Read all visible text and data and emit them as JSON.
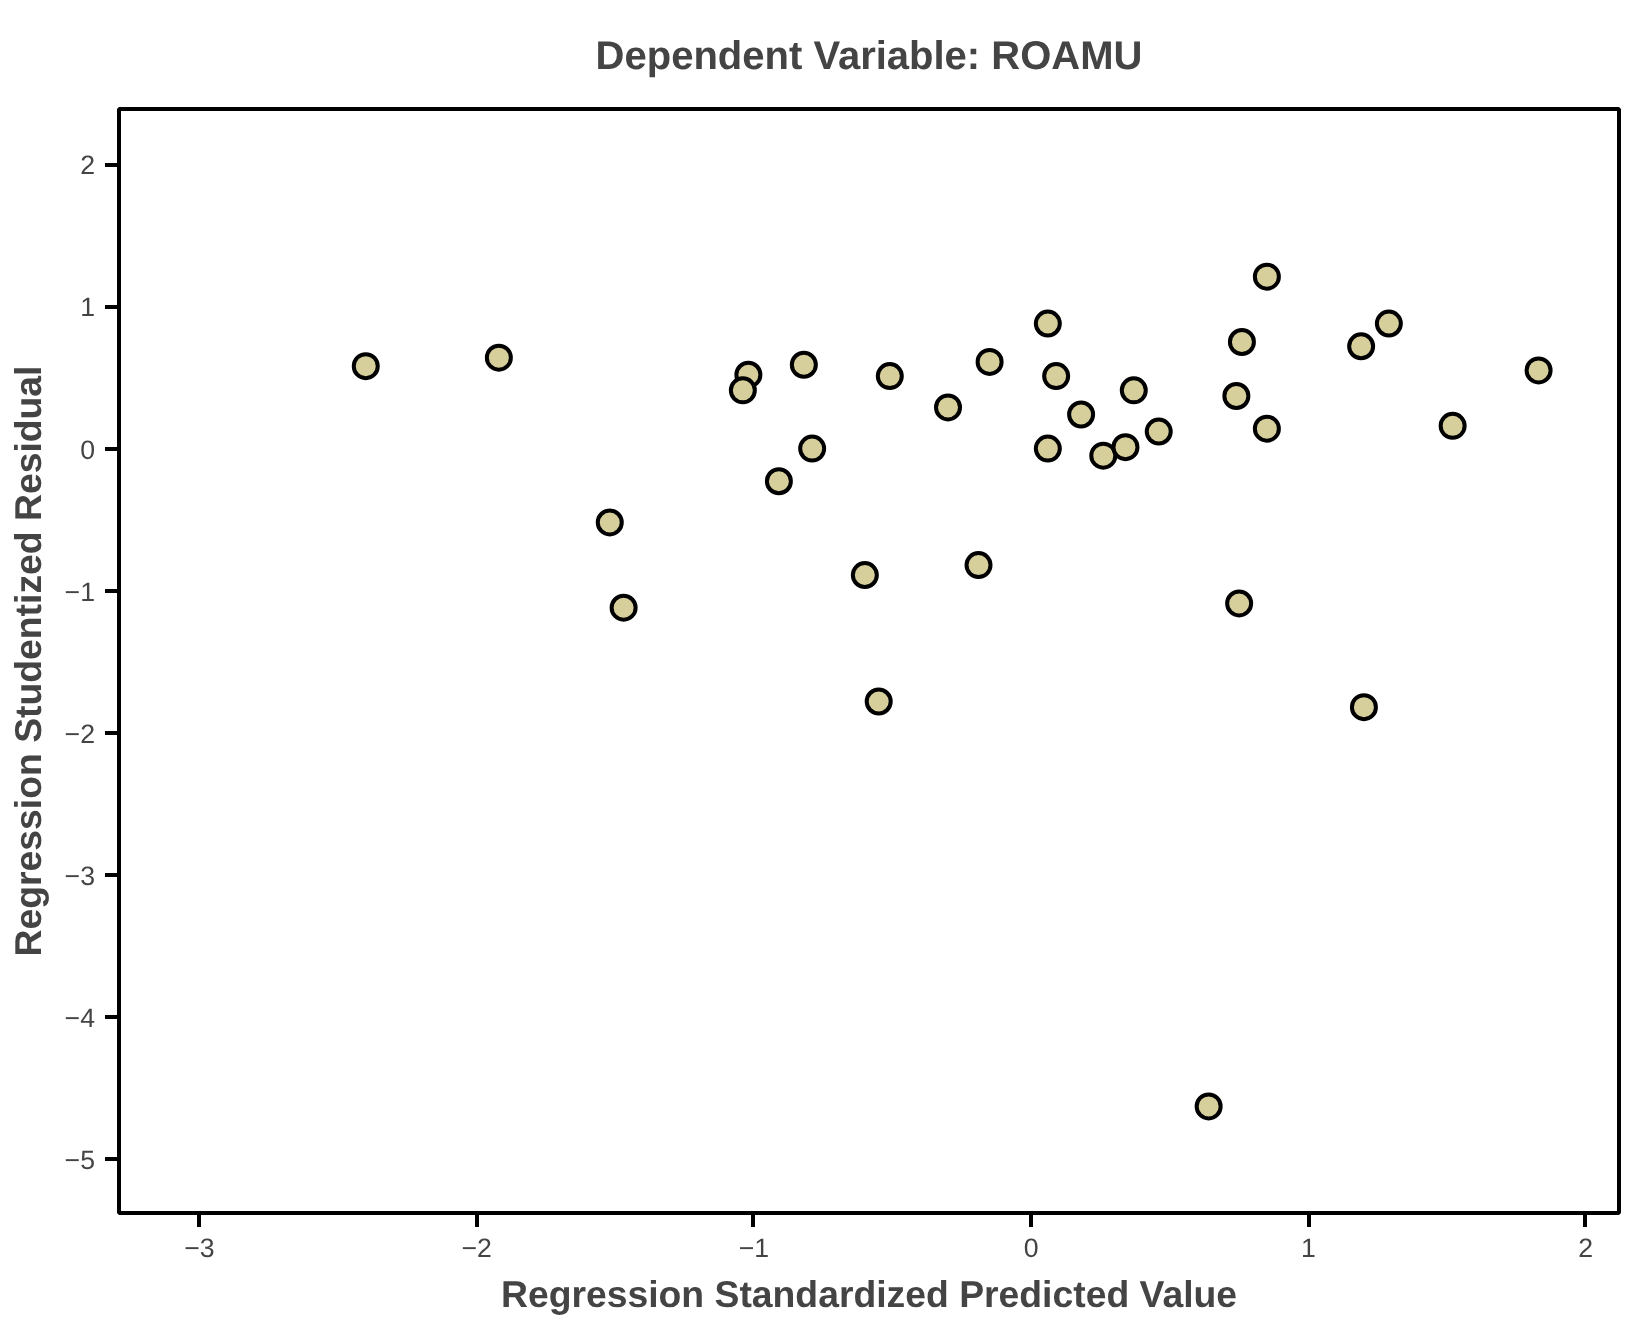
{
  "chart_data": {
    "type": "scatter",
    "title": "Dependent Variable: ROAMU",
    "xlabel": "Regression Standardized Predicted Value",
    "ylabel": "Regression Studentized Residual",
    "x": [
      -2.4,
      -1.92,
      -1.02,
      -1.04,
      -0.82,
      -0.79,
      -0.91,
      -1.52,
      -1.47,
      -0.6,
      -0.51,
      -0.3,
      -0.15,
      0.06,
      0.09,
      0.06,
      0.18,
      0.26,
      0.34,
      0.37,
      0.46,
      0.74,
      0.76,
      0.74,
      0.85,
      0.85,
      1.19,
      1.29,
      1.52,
      1.83,
      -0.19,
      0.75,
      -0.55,
      1.2,
      0.64
    ],
    "values": [
      0.58,
      0.64,
      0.52,
      0.41,
      0.59,
      0.0,
      -0.23,
      -0.52,
      -1.12,
      -0.89,
      0.51,
      0.29,
      0.61,
      0.88,
      0.51,
      0.0,
      0.24,
      -0.05,
      0.01,
      0.41,
      0.12,
      null,
      0.75,
      0.37,
      1.21,
      0.14,
      0.72,
      0.88,
      0.16,
      0.55,
      -0.82,
      -1.09,
      -1.78,
      -1.82,
      -4.63
    ],
    "color": "#d6cf9c",
    "marker": "circle",
    "grid": false,
    "xlim": [
      -3.29,
      2.12
    ],
    "xticks": [
      -3,
      -2,
      -1,
      0,
      1,
      2
    ],
    "ylim": [
      -5.38,
      2.39
    ],
    "yticks": [
      -5,
      -4,
      -3,
      -2,
      -1,
      0,
      1,
      2
    ]
  }
}
